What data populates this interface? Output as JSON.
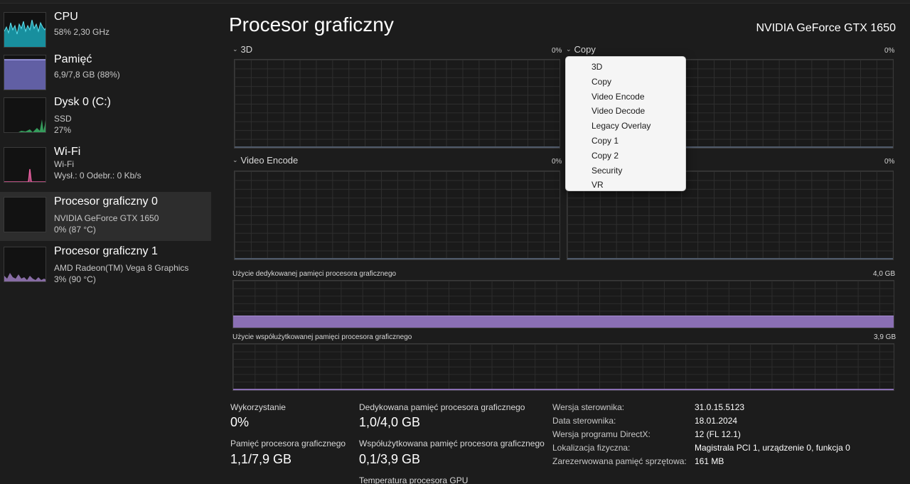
{
  "colors": {
    "cpu": "#1aa6b7",
    "memory": "#7c79d6",
    "disk": "#3fbf6f",
    "wifi": "#e85fa0",
    "gpu1": "#a583c9",
    "dedicated_memory_fill": "#8a6fb4",
    "baseline": "#4f5a6a"
  },
  "sidebar": {
    "items": [
      {
        "title": "CPU",
        "lines": [
          "58%  2,30 GHz"
        ],
        "icon": "cpu-graph",
        "active": false
      },
      {
        "title": "Pamięć",
        "lines": [
          "6,9/7,8 GB (88%)"
        ],
        "icon": "memory-graph",
        "active": false
      },
      {
        "title": "Dysk 0 (C:)",
        "lines": [
          "SSD",
          "27%"
        ],
        "icon": "disk-graph",
        "active": false
      },
      {
        "title": "Wi-Fi",
        "lines": [
          "Wi-Fi",
          "Wysł.: 0 Odebr.: 0 Kb/s"
        ],
        "icon": "wifi-graph",
        "active": false
      },
      {
        "title": "Procesor graficzny 0",
        "lines": [
          "NVIDIA GeForce GTX 1650",
          "0%  (87 °C)"
        ],
        "icon": "gpu0-graph",
        "active": true
      },
      {
        "title": "Procesor graficzny 1",
        "lines": [
          "AMD Radeon(TM) Vega 8 Graphics",
          "3%  (90 °C)"
        ],
        "icon": "gpu1-graph",
        "active": false
      }
    ]
  },
  "header": {
    "title": "Procesor graficzny",
    "gpu_name": "NVIDIA GeForce GTX 1650"
  },
  "engines": {
    "e1": {
      "label": "3D",
      "percent": "0%"
    },
    "e2": {
      "label": "Copy",
      "percent": "0%"
    },
    "e3": {
      "label": "Video Encode",
      "percent": "0%"
    },
    "e4": {
      "label": "",
      "percent": "0%"
    }
  },
  "dropdown": {
    "options": [
      "3D",
      "Copy",
      "Video Encode",
      "Video Decode",
      "Legacy Overlay",
      "Copy 1",
      "Copy 2",
      "Security",
      "VR"
    ]
  },
  "memory": {
    "dedicated_label": "Użycie dedykowanej pamięci procesora graficznego",
    "dedicated_max": "4,0 GB",
    "dedicated_fraction": 0.25,
    "shared_label": "Użycie współużytkowanej pamięci procesora graficznego",
    "shared_max": "3,9 GB"
  },
  "stats": {
    "utilization_label": "Wykorzystanie",
    "utilization_value": "0%",
    "gpu_memory_label": "Pamięć procesora graficznego",
    "gpu_memory_value": "1,1/7,9 GB",
    "dedicated_label": "Dedykowana pamięć procesora graficznego",
    "dedicated_value": "1,0/4,0 GB",
    "shared_label": "Współużytkowana pamięć procesora graficznego",
    "shared_value": "0,1/3,9 GB",
    "temperature_label": "Temperatura procesora GPU"
  },
  "info": [
    {
      "key": "Wersja sterownika:",
      "value": "31.0.15.5123"
    },
    {
      "key": "Data sterownika:",
      "value": "18.01.2024"
    },
    {
      "key": "Wersja programu DirectX:",
      "value": "12 (FL 12.1)"
    },
    {
      "key": "Lokalizacja fizyczna:",
      "value": "Magistrala PCI 1, urządzenie 0, funkcja 0"
    },
    {
      "key": "Zarezerwowana pamięć sprzętowa:",
      "value": "161 MB"
    }
  ]
}
